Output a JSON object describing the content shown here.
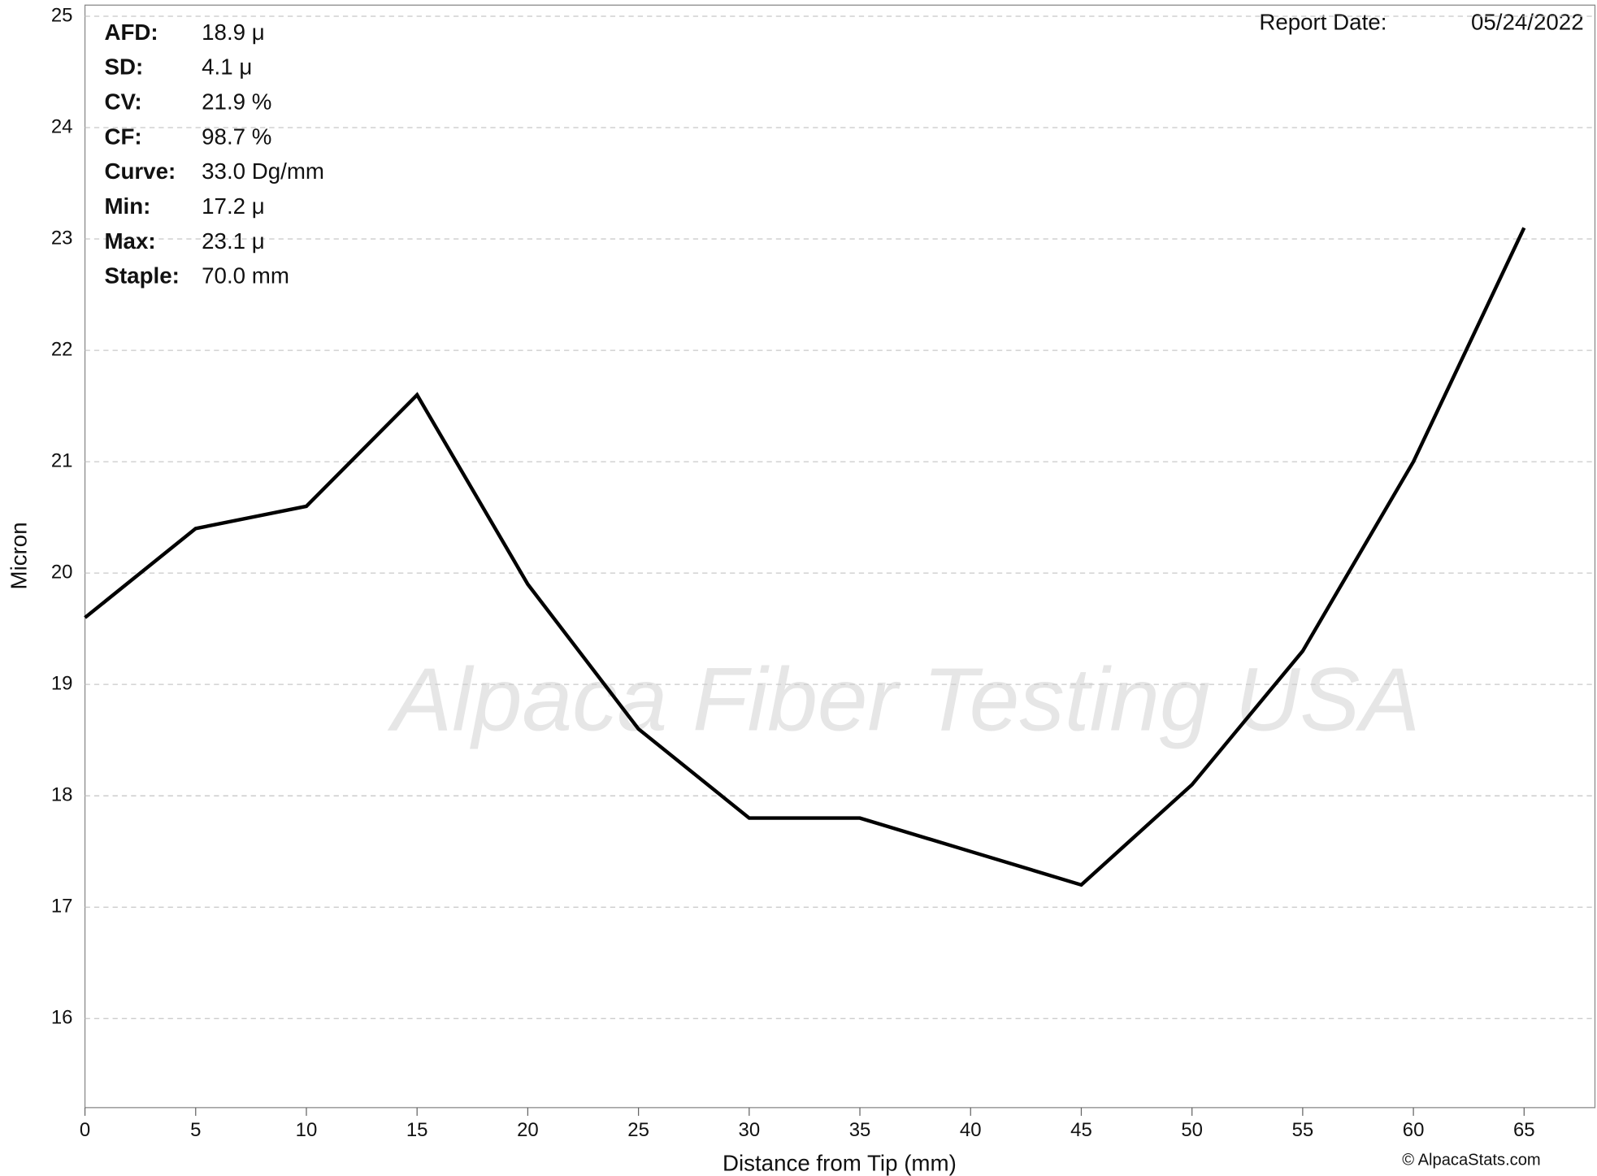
{
  "chart_data": {
    "type": "line",
    "x_label": "Distance from Tip (mm)",
    "y_label": "Micron",
    "report_date_label": "Report Date:",
    "report_date": "05/24/2022",
    "watermark": "Alpaca Fiber Testing USA",
    "copyright": "© AlpacaStats.com",
    "stats": [
      {
        "label": "AFD:",
        "value": "18.9 μ"
      },
      {
        "label": "SD:",
        "value": "4.1 μ"
      },
      {
        "label": "CV:",
        "value": "21.9 %"
      },
      {
        "label": "CF:",
        "value": "98.7 %"
      },
      {
        "label": "Curve:",
        "value": "33.0 Dg/mm"
      },
      {
        "label": "Min:",
        "value": "17.2 μ"
      },
      {
        "label": "Max:",
        "value": "23.1 μ"
      },
      {
        "label": "Staple:",
        "value": "70.0 mm"
      }
    ],
    "x": [
      0,
      5,
      10,
      15,
      20,
      25,
      30,
      35,
      40,
      45,
      50,
      55,
      60,
      65
    ],
    "series": [
      {
        "color": "#000000",
        "values": [
          19.6,
          20.4,
          20.6,
          21.6,
          19.9,
          18.6,
          17.8,
          17.8,
          17.5,
          17.2,
          18.1,
          19.3,
          21.0,
          23.1
        ]
      }
    ],
    "xlim": [
      0,
      68.2
    ],
    "ylim": [
      15.2,
      25.1
    ],
    "xticks": [
      0,
      5,
      10,
      15,
      20,
      25,
      30,
      35,
      40,
      45,
      50,
      55,
      60,
      65
    ],
    "yticks": [
      16,
      17,
      18,
      19,
      20,
      21,
      22,
      23,
      24,
      25
    ],
    "grid": true
  }
}
